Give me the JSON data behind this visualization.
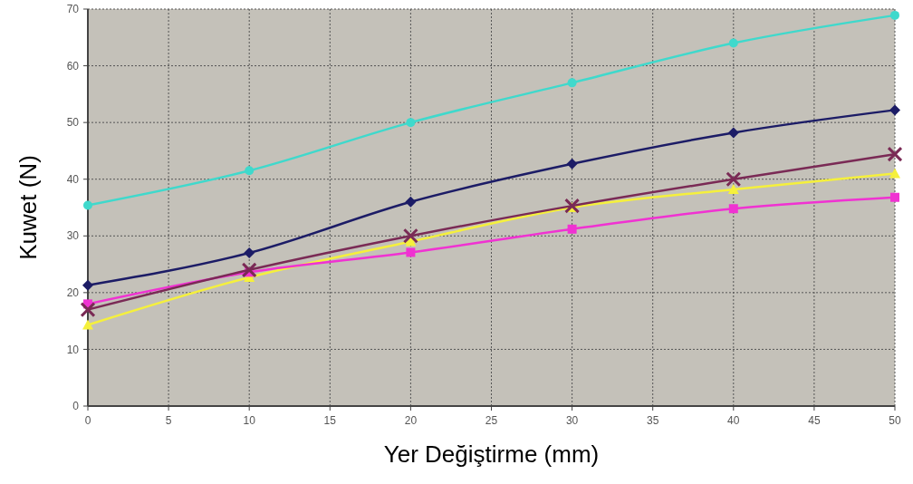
{
  "chart_data": {
    "type": "line",
    "xlabel": "Yer Değiştirme (mm)",
    "ylabel": "Kuwet (N)",
    "x": [
      0,
      10,
      20,
      30,
      40,
      50
    ],
    "xlim": [
      0,
      50
    ],
    "xticks": [
      0,
      5,
      10,
      15,
      20,
      25,
      30,
      35,
      40,
      45,
      50
    ],
    "ylim": [
      0,
      70
    ],
    "yticks": [
      0,
      10,
      20,
      30,
      40,
      50,
      60,
      70
    ],
    "grid": true,
    "line_style": "solid",
    "series": [
      {
        "color": "#3fd9cc",
        "marker": "circle",
        "values": [
          35.4,
          41.5,
          50,
          57,
          64,
          68.9
        ]
      },
      {
        "color": "#1c1c66",
        "marker": "diamond",
        "values": [
          21.3,
          27,
          36,
          42.7,
          48.2,
          52.2
        ]
      },
      {
        "color": "#7a2a55",
        "marker": "cross",
        "values": [
          17,
          24,
          30,
          35.3,
          40,
          44.4
        ]
      },
      {
        "color": "#f5f03c",
        "marker": "triangle",
        "values": [
          14.3,
          22.7,
          29,
          35,
          38.2,
          41
        ]
      },
      {
        "color": "#f032d2",
        "marker": "square",
        "values": [
          18,
          23.6,
          27.1,
          31.2,
          34.8,
          36.8
        ]
      }
    ]
  }
}
